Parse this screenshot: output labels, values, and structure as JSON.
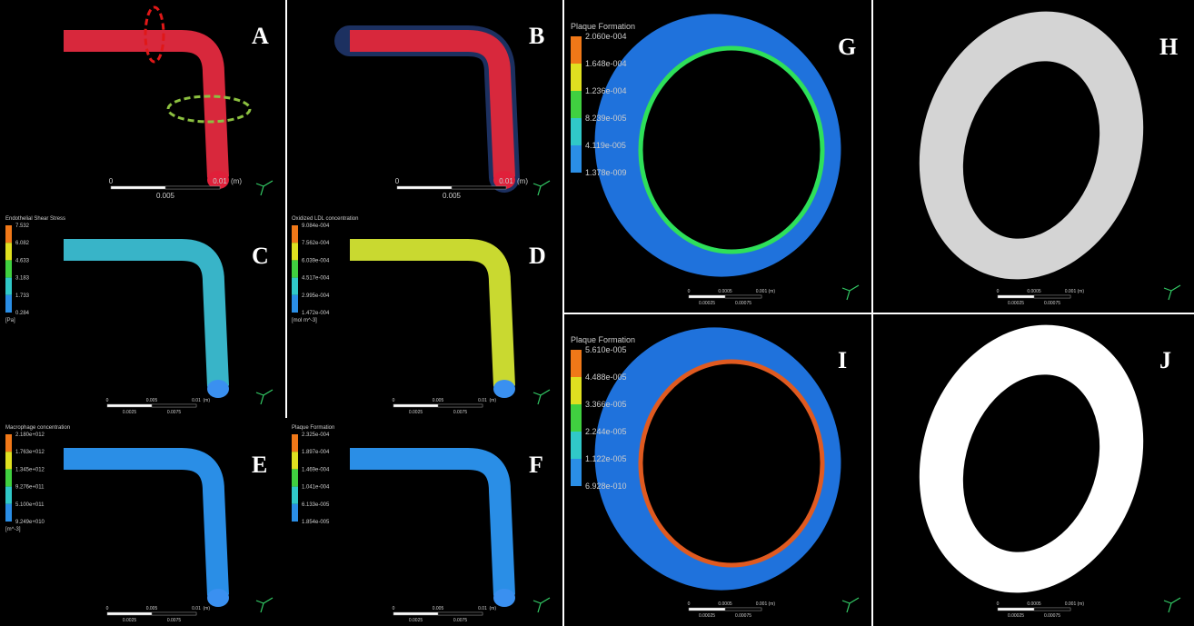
{
  "panels": [
    {
      "letter": "A",
      "scale": {
        "top": [
          "0",
          "0.01",
          "(m)"
        ],
        "bottom": [
          "0.005"
        ]
      }
    },
    {
      "letter": "B",
      "scale": {
        "top": [
          "0",
          "0.01",
          "(m)"
        ],
        "bottom": [
          "0.005"
        ]
      }
    },
    {
      "letter": "C",
      "legend": {
        "title": "Endothelial Shear Stress",
        "labels": [
          "7.532",
          "6.082",
          "4.633",
          "3.183",
          "1.733",
          "0.284"
        ],
        "unit": "[Pa]"
      },
      "scale": {
        "top": [
          "0",
          "0.005",
          "0.01",
          "(m)"
        ],
        "bottom": [
          "0.0025",
          "0.0075"
        ]
      }
    },
    {
      "letter": "D",
      "legend": {
        "title": "Oxidized LDL concentration",
        "labels": [
          "9.084e-004",
          "7.562e-004",
          "6.039e-004",
          "4.517e-004",
          "2.995e-004",
          "1.472e-004"
        ],
        "unit": "[mol m^-3]"
      },
      "scale": {
        "top": [
          "0",
          "0.005",
          "0.01",
          "(m)"
        ],
        "bottom": [
          "0.0025",
          "0.0075"
        ]
      }
    },
    {
      "letter": "E",
      "legend": {
        "title": "Macrophage concentration",
        "labels": [
          "2.180e+012",
          "1.763e+012",
          "1.345e+012",
          "9.276e+011",
          "5.100e+011",
          "9.249e+010"
        ],
        "unit": "[m^-3]"
      },
      "scale": {
        "top": [
          "0",
          "0.005",
          "0.01",
          "(m)"
        ],
        "bottom": [
          "0.0025",
          "0.0075"
        ]
      }
    },
    {
      "letter": "F",
      "legend": {
        "title": "Plaque Formation",
        "labels": [
          "2.325e-004",
          "1.897e-004",
          "1.469e-004",
          "1.041e-004",
          "6.133e-005",
          "1.854e-005"
        ]
      },
      "scale": {
        "top": [
          "0",
          "0.005",
          "0.01",
          "(m)"
        ],
        "bottom": [
          "0.0025",
          "0.0075"
        ]
      }
    },
    {
      "letter": "G",
      "legend": {
        "title": "Plaque Formation",
        "labels": [
          "2.060e-004",
          "1.648e-004",
          "1.236e-004",
          "8.239e-005",
          "4.119e-005",
          "1.378e-009"
        ]
      },
      "scale": {
        "top": [
          "0",
          "0.0005",
          "0.001",
          "(m)"
        ],
        "bottom": [
          "0.00025",
          "0.00075"
        ]
      }
    },
    {
      "letter": "H",
      "scale": {
        "top": [
          "0",
          "0.0005",
          "0.001",
          "(m)"
        ],
        "bottom": [
          "0.00025",
          "0.00075"
        ]
      }
    },
    {
      "letter": "I",
      "legend": {
        "title": "Plaque Formation",
        "labels": [
          "5.610e-005",
          "4.488e-005",
          "3.366e-005",
          "2.244e-005",
          "1.122e-005",
          "6.928e-010"
        ]
      },
      "scale": {
        "top": [
          "0",
          "0.0005",
          "0.001",
          "(m)"
        ],
        "bottom": [
          "0.00025",
          "0.00075"
        ]
      }
    },
    {
      "letter": "J",
      "scale": {
        "top": [
          "0",
          "0.0005",
          "0.001",
          "(m)"
        ],
        "bottom": [
          "0.00025",
          "0.00075"
        ]
      }
    }
  ]
}
